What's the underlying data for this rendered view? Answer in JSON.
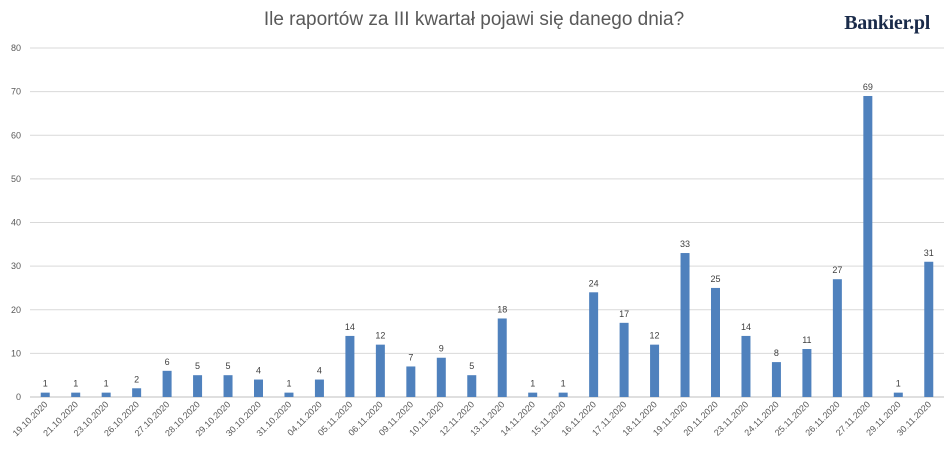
{
  "brand": "Bankier.pl",
  "chart_data": {
    "type": "bar",
    "title": "Ile raportów za III kwartał pojawi się danego dnia?",
    "xlabel": "",
    "ylabel": "",
    "ylim": [
      0,
      80
    ],
    "yticks": [
      0,
      10,
      20,
      30,
      40,
      50,
      60,
      70,
      80
    ],
    "grid": true,
    "bar_color": "#4f81bd",
    "categories": [
      "19.10.2020",
      "21.10.2020",
      "23.10.2020",
      "26.10.2020",
      "27.10.2020",
      "28.10.2020",
      "29.10.2020",
      "30.10.2020",
      "31.10.2020",
      "04.11.2020",
      "05.11.2020",
      "06.11.2020",
      "09.11.2020",
      "10.11.2020",
      "12.11.2020",
      "13.11.2020",
      "14.11.2020",
      "15.11.2020",
      "16.11.2020",
      "17.11.2020",
      "18.11.2020",
      "19.11.2020",
      "20.11.2020",
      "23.11.2020",
      "24.11.2020",
      "25.11.2020",
      "26.11.2020",
      "27.11.2020",
      "29.11.2020",
      "30.11.2020"
    ],
    "values": [
      1,
      1,
      1,
      2,
      6,
      5,
      5,
      4,
      1,
      4,
      14,
      12,
      7,
      9,
      5,
      18,
      1,
      1,
      24,
      17,
      12,
      33,
      25,
      14,
      8,
      11,
      27,
      69,
      1,
      31
    ]
  }
}
